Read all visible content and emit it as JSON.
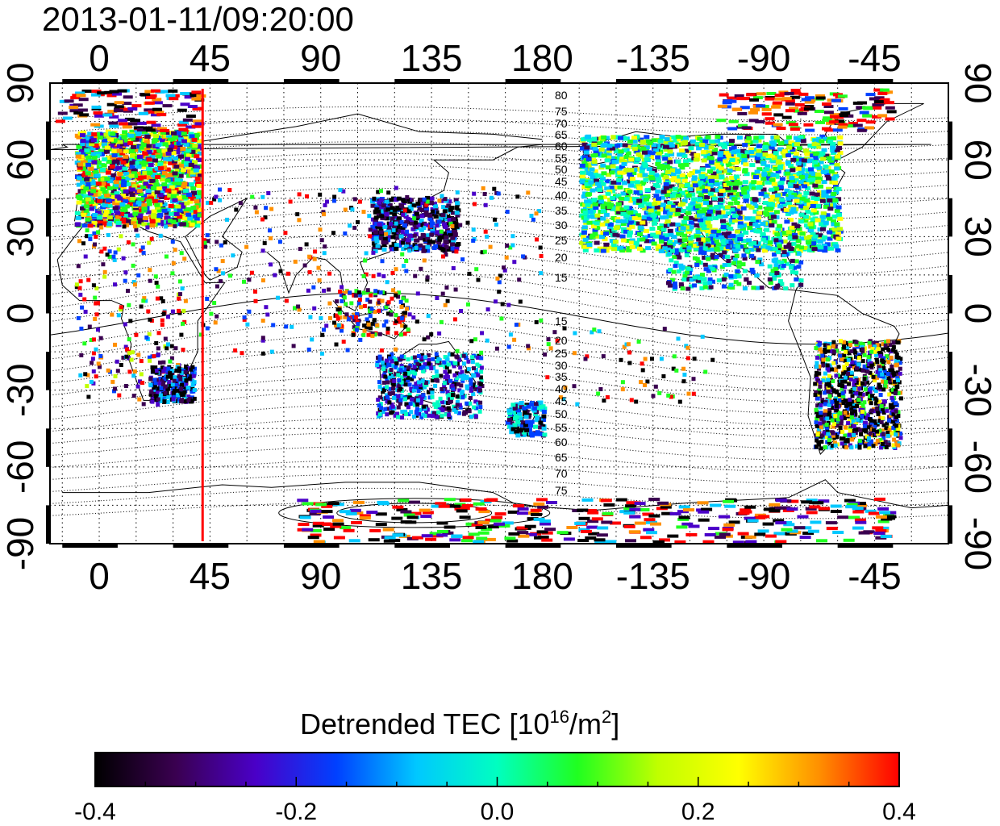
{
  "timestamp": "2013-01-11/09:20:00",
  "map": {
    "lon_tick_labels": [
      "0",
      "45",
      "90",
      "135",
      "180",
      "-135",
      "-90",
      "-45"
    ],
    "lon_tick_values": [
      0,
      45,
      90,
      135,
      180,
      225,
      270,
      315
    ],
    "lat_tick_labels": [
      "90",
      "60",
      "30",
      "0",
      "-30",
      "-60",
      "-90"
    ],
    "lat_tick_values": [
      90,
      60,
      30,
      0,
      -30,
      -60,
      -90
    ],
    "lon_range": [
      -20,
      345
    ],
    "lat_range": [
      -90,
      90
    ],
    "marker_line_lon": 42,
    "marker_line_color": "#ff0000",
    "grid": "dotted",
    "mag_labels_north": [
      "80",
      "75",
      "70",
      "65",
      "60",
      "55",
      "50",
      "45",
      "40",
      "35",
      "30",
      "25",
      "20",
      "15"
    ],
    "mag_labels_south": [
      "15",
      "20",
      "25",
      "30",
      "35",
      "40",
      "45",
      "50",
      "55",
      "60",
      "65",
      "70",
      "75"
    ]
  },
  "colorbar": {
    "title": "Detrended TEC",
    "unit_base": "10",
    "unit_exp": "16",
    "unit_mid": "/m",
    "unit_exp2": "2",
    "min": -0.4,
    "max": 0.4,
    "tick_labels": [
      "-0.4",
      "-0.2",
      "0.0",
      "0.2",
      "0.4"
    ],
    "tick_values": [
      -0.4,
      -0.2,
      0.0,
      0.2,
      0.4
    ],
    "colors": [
      "#000000",
      "#3a0050",
      "#4a00c8",
      "#0040ff",
      "#00c8ff",
      "#00ffc0",
      "#20ff20",
      "#c0ff00",
      "#ffff00",
      "#ff9000",
      "#ff0000"
    ]
  }
}
